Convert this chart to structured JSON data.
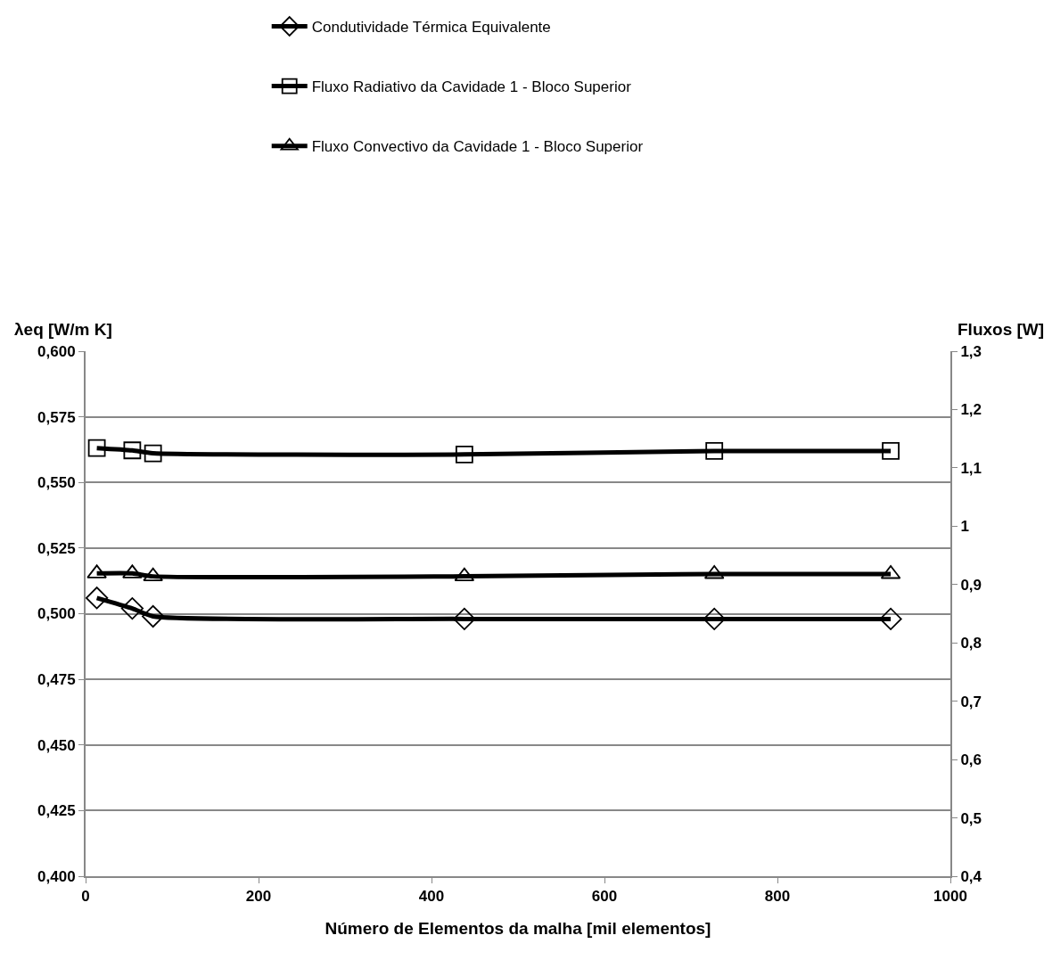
{
  "chart_data": {
    "type": "line",
    "xlabel": "Número de Elementos da malha [mil elementos]",
    "ylabel": "λeq [W/m K]",
    "y2label": "Fluxos [W]",
    "xlim": [
      0,
      1000
    ],
    "xticks": [
      0,
      200,
      400,
      600,
      800,
      1000
    ],
    "ylim": [
      0.4,
      0.6
    ],
    "yticks": [
      {
        "value": 0.4,
        "label": "0,400"
      },
      {
        "value": 0.425,
        "label": "0,425"
      },
      {
        "value": 0.45,
        "label": "0,450"
      },
      {
        "value": 0.475,
        "label": "0,475"
      },
      {
        "value": 0.5,
        "label": "0,500"
      },
      {
        "value": 0.525,
        "label": "0,525"
      },
      {
        "value": 0.55,
        "label": "0,550"
      },
      {
        "value": 0.575,
        "label": "0,575"
      },
      {
        "value": 0.6,
        "label": "0,600"
      }
    ],
    "y2lim": [
      0.4,
      1.3
    ],
    "y2ticks": [
      {
        "value": 0.4,
        "label": "0,4"
      },
      {
        "value": 0.5,
        "label": "0,5"
      },
      {
        "value": 0.6,
        "label": "0,6"
      },
      {
        "value": 0.7,
        "label": "0,7"
      },
      {
        "value": 0.8,
        "label": "0,8"
      },
      {
        "value": 0.9,
        "label": "0,9"
      },
      1,
      {
        "value": 1.1,
        "label": "1,1"
      },
      {
        "value": 1.2,
        "label": "1,2"
      },
      {
        "value": 1.3,
        "label": "1,3"
      }
    ],
    "x": [
      13,
      54,
      78,
      438,
      727,
      931
    ],
    "grid": "y",
    "legend": "top",
    "line_style": "solid",
    "series": [
      {
        "name": "Condutividade Térmica Equivalente",
        "color": "#000000",
        "marker": "diamond",
        "values": [
          0.506,
          0.502,
          0.499,
          0.498,
          0.498,
          0.498
        ]
      },
      {
        "name": "Fluxo Radiativo da Cavidade 1 - Bloco Superior",
        "color": "#000000",
        "marker": "square",
        "axis": "y2",
        "values": [
          1.134,
          1.13,
          1.125,
          1.123,
          1.129,
          1.129
        ]
      },
      {
        "name": "Fluxo Convectivo da Cavidade 1 - Bloco Superior",
        "color": "#000000",
        "marker": "triangle",
        "axis": "y2",
        "values": [
          0.919,
          0.919,
          0.914,
          0.914,
          0.918,
          0.918
        ]
      }
    ]
  }
}
